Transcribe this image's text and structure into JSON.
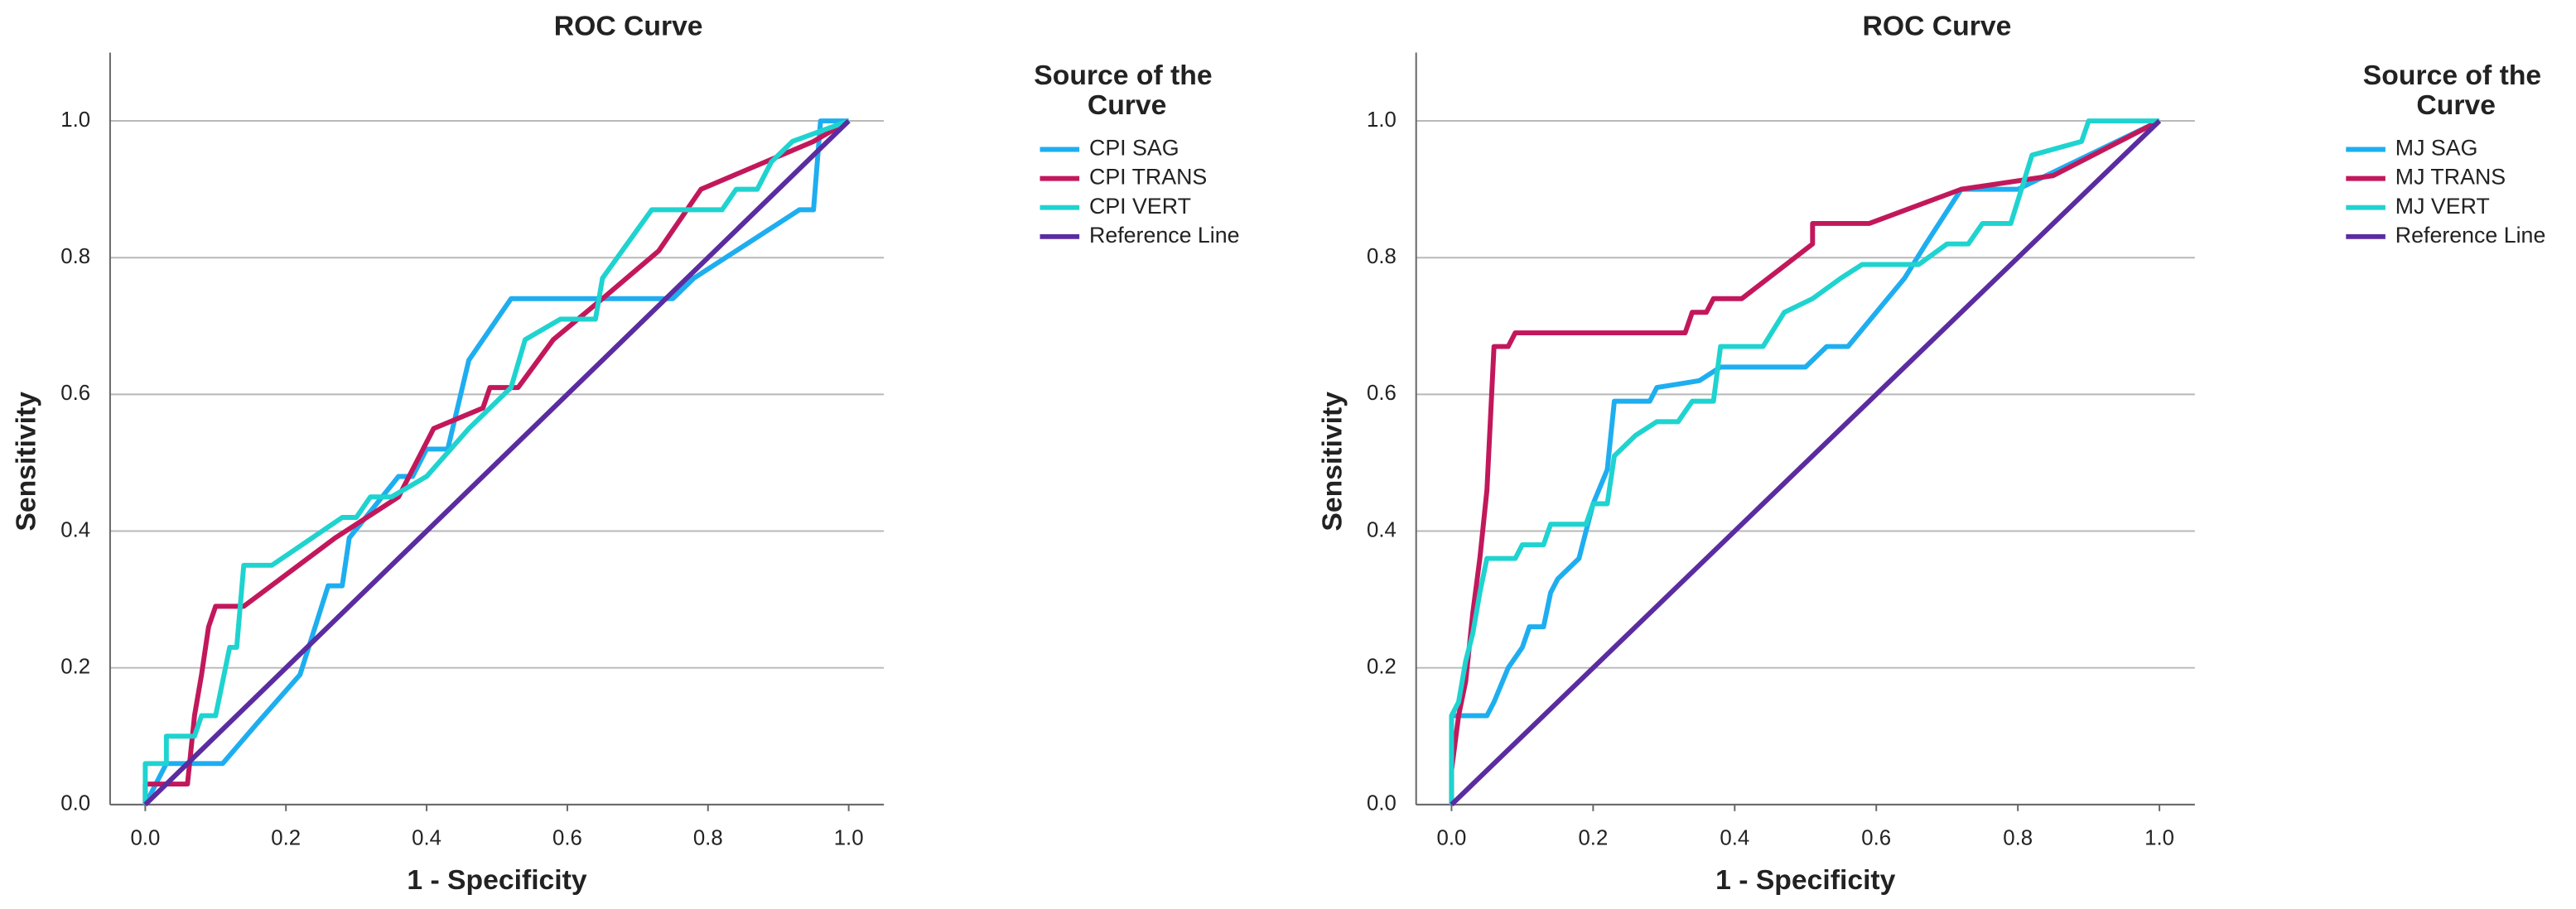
{
  "chart_data": [
    {
      "type": "line",
      "title": "ROC Curve",
      "xlabel": "1 - Specificity",
      "ylabel": "Sensitivity",
      "legend_title": "Source of the Curve",
      "xlim": [
        -0.05,
        1.05
      ],
      "ylim": [
        0,
        1.1
      ],
      "xticks": [
        {
          "value": 0,
          "label": "0.0"
        },
        0.2,
        0.4,
        0.6,
        0.8,
        {
          "value": 1,
          "label": "1.0"
        }
      ],
      "yticks": [
        {
          "value": 0,
          "label": "0.0"
        },
        0.2,
        0.4,
        0.6,
        0.8,
        {
          "value": 1,
          "label": "1.0"
        }
      ],
      "grid": true,
      "series": [
        {
          "name": "CPI SAG",
          "color": "#1eaef0",
          "x": [
            0,
            0.03,
            0.11,
            0.16,
            0.22,
            0.26,
            0.28,
            0.29,
            0.36,
            0.38,
            0.4,
            0.43,
            0.46,
            0.52,
            0.75,
            0.78,
            0.93,
            0.95,
            0.96,
            1
          ],
          "values": [
            0,
            0.06,
            0.06,
            0.12,
            0.19,
            0.32,
            0.32,
            0.39,
            0.48,
            0.48,
            0.52,
            0.52,
            0.65,
            0.74,
            0.74,
            0.77,
            0.87,
            0.87,
            1,
            1
          ]
        },
        {
          "name": "CPI TRANS",
          "color": "#c2185b",
          "x": [
            0,
            0,
            0.06,
            0.07,
            0.08,
            0.09,
            0.1,
            0.14,
            0.27,
            0.36,
            0.41,
            0.48,
            0.49,
            0.53,
            0.58,
            0.65,
            0.73,
            0.79,
            0.95,
            1
          ],
          "values": [
            0,
            0.03,
            0.03,
            0.13,
            0.19,
            0.26,
            0.29,
            0.29,
            0.39,
            0.45,
            0.55,
            0.58,
            0.61,
            0.61,
            0.68,
            0.74,
            0.81,
            0.9,
            0.97,
            1
          ]
        },
        {
          "name": "CPI VERT",
          "color": "#1fd3cf",
          "x": [
            0,
            0,
            0.03,
            0.03,
            0.07,
            0.08,
            0.1,
            0.12,
            0.13,
            0.14,
            0.18,
            0.28,
            0.3,
            0.32,
            0.35,
            0.4,
            0.46,
            0.52,
            0.54,
            0.59,
            0.64,
            0.65,
            0.72,
            0.82,
            0.84,
            0.87,
            0.89,
            0.92,
            1
          ],
          "values": [
            0,
            0.06,
            0.06,
            0.1,
            0.1,
            0.13,
            0.13,
            0.23,
            0.23,
            0.35,
            0.35,
            0.42,
            0.42,
            0.45,
            0.45,
            0.48,
            0.55,
            0.61,
            0.68,
            0.71,
            0.71,
            0.77,
            0.87,
            0.87,
            0.9,
            0.9,
            0.94,
            0.97,
            1
          ]
        },
        {
          "name": "Reference Line",
          "color": "#5b2ca0",
          "x": [
            0,
            1
          ],
          "values": [
            0,
            1
          ]
        }
      ]
    },
    {
      "type": "line",
      "title": "ROC Curve",
      "xlabel": "1 - Specificity",
      "ylabel": "Sensitivity",
      "legend_title": "Source of the Curve",
      "xlim": [
        -0.05,
        1.05
      ],
      "ylim": [
        0,
        1.1
      ],
      "xticks": [
        {
          "value": 0,
          "label": "0.0"
        },
        0.2,
        0.4,
        0.6,
        0.8,
        {
          "value": 1,
          "label": "1.0"
        }
      ],
      "yticks": [
        {
          "value": 0,
          "label": "0.0"
        },
        0.2,
        0.4,
        0.6,
        0.8,
        {
          "value": 1,
          "label": "1.0"
        }
      ],
      "grid": true,
      "series": [
        {
          "name": "MJ SAG",
          "color": "#1eaef0",
          "x": [
            0,
            0,
            0.05,
            0.06,
            0.08,
            0.1,
            0.11,
            0.13,
            0.14,
            0.15,
            0.18,
            0.2,
            0.22,
            0.23,
            0.28,
            0.29,
            0.35,
            0.38,
            0.5,
            0.53,
            0.56,
            0.6,
            0.64,
            0.67,
            0.72,
            0.8,
            1
          ],
          "values": [
            0,
            0.13,
            0.13,
            0.15,
            0.2,
            0.23,
            0.26,
            0.26,
            0.31,
            0.33,
            0.36,
            0.44,
            0.49,
            0.59,
            0.59,
            0.61,
            0.62,
            0.64,
            0.64,
            0.67,
            0.67,
            0.72,
            0.77,
            0.82,
            0.9,
            0.9,
            1
          ]
        },
        {
          "name": "MJ TRANS",
          "color": "#c2185b",
          "x": [
            0,
            0,
            0.01,
            0.02,
            0.03,
            0.04,
            0.05,
            0.06,
            0.08,
            0.09,
            0.33,
            0.34,
            0.36,
            0.37,
            0.41,
            0.51,
            0.51,
            0.59,
            0.72,
            0.85,
            1
          ],
          "values": [
            0,
            0.05,
            0.13,
            0.18,
            0.28,
            0.36,
            0.46,
            0.67,
            0.67,
            0.69,
            0.69,
            0.72,
            0.72,
            0.74,
            0.74,
            0.82,
            0.85,
            0.85,
            0.9,
            0.92,
            1
          ]
        },
        {
          "name": "MJ VERT",
          "color": "#1fd3cf",
          "x": [
            0,
            0,
            0.01,
            0.02,
            0.03,
            0.04,
            0.05,
            0.09,
            0.1,
            0.13,
            0.14,
            0.19,
            0.2,
            0.22,
            0.23,
            0.26,
            0.29,
            0.32,
            0.34,
            0.37,
            0.38,
            0.44,
            0.47,
            0.51,
            0.55,
            0.58,
            0.66,
            0.7,
            0.73,
            0.75,
            0.79,
            0.82,
            0.89,
            0.9,
            1
          ],
          "values": [
            0,
            0.13,
            0.15,
            0.21,
            0.25,
            0.31,
            0.36,
            0.36,
            0.38,
            0.38,
            0.41,
            0.41,
            0.44,
            0.44,
            0.51,
            0.54,
            0.56,
            0.56,
            0.59,
            0.59,
            0.67,
            0.67,
            0.72,
            0.74,
            0.77,
            0.79,
            0.79,
            0.82,
            0.82,
            0.85,
            0.85,
            0.95,
            0.97,
            1,
            1
          ]
        },
        {
          "name": "Reference Line",
          "color": "#5b2ca0",
          "x": [
            0,
            1
          ],
          "values": [
            0,
            1
          ]
        }
      ]
    }
  ]
}
